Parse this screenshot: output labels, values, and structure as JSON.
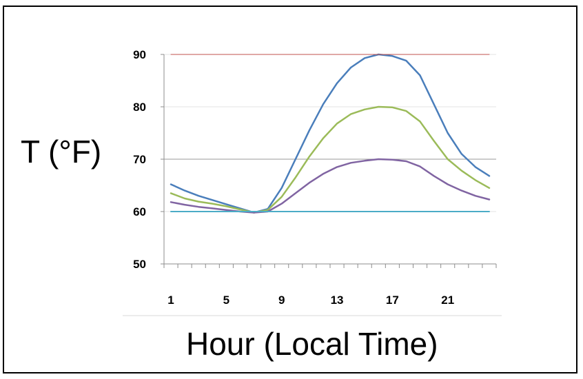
{
  "chart_data": {
    "type": "line",
    "xlabel": "Hour (Local Time)",
    "ylabel": "T (°F)",
    "ylim": [
      50,
      90
    ],
    "xlim": [
      1,
      24
    ],
    "y_ticks": [
      "50",
      "60",
      "70",
      "80",
      "90"
    ],
    "x_tick_labels": [
      "1",
      "5",
      "9",
      "13",
      "17",
      "21"
    ],
    "grid": true,
    "legend": "none",
    "x": [
      1,
      2,
      3,
      4,
      5,
      6,
      7,
      8,
      9,
      10,
      11,
      12,
      13,
      14,
      15,
      16,
      17,
      18,
      19,
      20,
      21,
      22,
      23,
      24
    ],
    "series": [
      {
        "color": "#4a7ebb",
        "values": [
          65.2,
          64.0,
          63.0,
          62.2,
          61.4,
          60.6,
          59.8,
          60.5,
          64.5,
          70.0,
          75.5,
          80.5,
          84.5,
          87.5,
          89.3,
          90.0,
          89.7,
          88.8,
          86.0,
          80.5,
          75.0,
          71.0,
          68.5,
          66.8
        ]
      },
      {
        "color": "#9bbb59",
        "values": [
          63.5,
          62.5,
          61.9,
          61.5,
          61.0,
          60.4,
          59.8,
          60.3,
          62.8,
          66.5,
          70.5,
          74.0,
          76.8,
          78.6,
          79.5,
          80.0,
          79.9,
          79.2,
          77.2,
          73.5,
          70.0,
          67.8,
          66.0,
          64.5
        ]
      },
      {
        "color": "#8064a2",
        "values": [
          61.8,
          61.3,
          60.9,
          60.6,
          60.3,
          60.0,
          59.8,
          60.0,
          61.5,
          63.5,
          65.5,
          67.2,
          68.5,
          69.3,
          69.7,
          70.0,
          69.9,
          69.6,
          68.6,
          66.8,
          65.2,
          64.0,
          63.0,
          62.3
        ]
      },
      {
        "color": "#4bacc6",
        "values": [
          60,
          60,
          60,
          60,
          60,
          60,
          60,
          60,
          60,
          60,
          60,
          60,
          60,
          60,
          60,
          60,
          60,
          60,
          60,
          60,
          60,
          60,
          60,
          60
        ]
      },
      {
        "color": "#c0504d",
        "values": [
          90,
          90,
          90,
          90,
          90,
          90,
          90,
          90,
          90,
          90,
          90,
          90,
          90,
          90,
          90,
          90,
          90,
          90,
          90,
          90,
          90,
          90,
          90,
          90
        ]
      }
    ]
  }
}
